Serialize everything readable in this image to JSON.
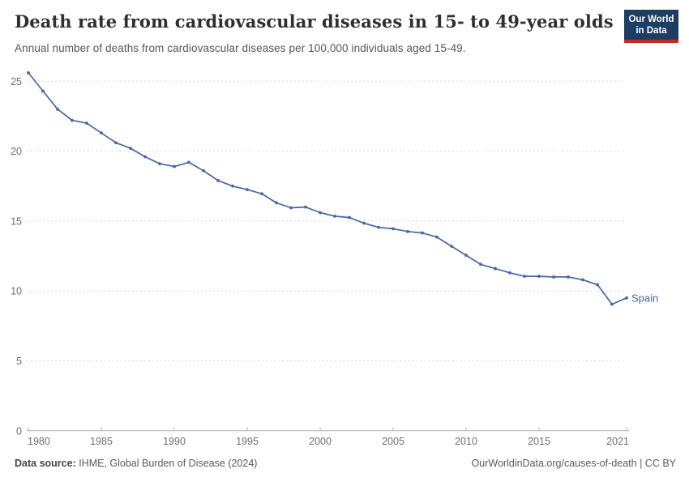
{
  "header": {
    "title": "Death rate from cardiovascular diseases in 15- to 49-year olds",
    "subtitle": "Annual number of deaths from cardiovascular diseases per 100,000 individuals aged 15-49.",
    "logo": {
      "line1": "Our World",
      "line2": "in Data",
      "bg_color": "#1d3d63",
      "bar_color": "#c9291f"
    }
  },
  "chart_data": {
    "type": "line",
    "title": "Death rate from cardiovascular diseases in 15- to 49-year olds",
    "subtitle": "Annual number of deaths from cardiovascular diseases per 100,000 individuals aged 15-49.",
    "xlabel": "",
    "ylabel": "",
    "xlim": [
      1980,
      2021
    ],
    "ylim": [
      0,
      26
    ],
    "grid": "horizontal-dashed",
    "legend_position": "end-of-line-label",
    "x_ticks": [
      1980,
      1985,
      1990,
      1995,
      2000,
      2005,
      2010,
      2015,
      2021
    ],
    "y_ticks": [
      0,
      5,
      10,
      15,
      20,
      25
    ],
    "series": [
      {
        "name": "Spain",
        "color": "#4666a5",
        "x": [
          1980,
          1981,
          1982,
          1983,
          1984,
          1985,
          1986,
          1987,
          1988,
          1989,
          1990,
          1991,
          1992,
          1993,
          1994,
          1995,
          1996,
          1997,
          1998,
          1999,
          2000,
          2001,
          2002,
          2003,
          2004,
          2005,
          2006,
          2007,
          2008,
          2009,
          2010,
          2011,
          2012,
          2013,
          2014,
          2015,
          2016,
          2017,
          2018,
          2019,
          2020,
          2021
        ],
        "values": [
          25.6,
          24.3,
          23.0,
          22.2,
          22.0,
          21.3,
          20.6,
          20.2,
          19.6,
          19.1,
          18.9,
          19.2,
          18.6,
          17.9,
          17.5,
          17.25,
          16.95,
          16.3,
          15.95,
          16.0,
          15.6,
          15.35,
          15.25,
          14.85,
          14.55,
          14.45,
          14.25,
          14.15,
          13.85,
          13.2,
          12.55,
          11.9,
          11.6,
          11.3,
          11.05,
          11.05,
          11.0,
          11.0,
          10.8,
          10.45,
          9.05,
          9.5
        ]
      }
    ],
    "colors": {
      "gridline": "#dcdcdc",
      "axis": "#b3b3b3",
      "tick_label": "#6e6e6e"
    }
  },
  "footer": {
    "source_label": "Data source:",
    "source_value": " IHME, Global Burden of Disease (2024)",
    "credit": "OurWorldinData.org/causes-of-death | CC BY"
  }
}
